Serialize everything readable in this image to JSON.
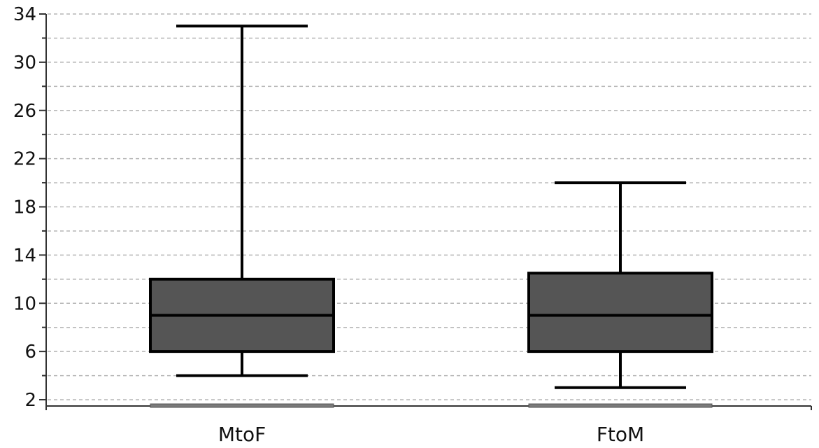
{
  "chart_data": {
    "type": "box",
    "title": "",
    "xlabel": "",
    "ylabel": "",
    "ylim": [
      2,
      34
    ],
    "y_major_ticks": [
      2,
      6,
      10,
      14,
      18,
      22,
      26,
      30,
      34
    ],
    "y_minor_step": 2,
    "grid": true,
    "legend": "none",
    "categories": [
      "MtoF",
      "FtoM"
    ],
    "boxes": [
      {
        "category": "MtoF",
        "min": 4,
        "q1": 6,
        "median": 9,
        "q3": 12,
        "max": 33
      },
      {
        "category": "FtoM",
        "min": 3,
        "q1": 6,
        "median": 9,
        "q3": 12.5,
        "max": 20
      }
    ],
    "colors": {
      "box_fill": "#555555",
      "box_stroke": "#000000",
      "grid": "#b5b5b5",
      "axis": "#333333",
      "category_marker": "#7a7a7a"
    }
  }
}
